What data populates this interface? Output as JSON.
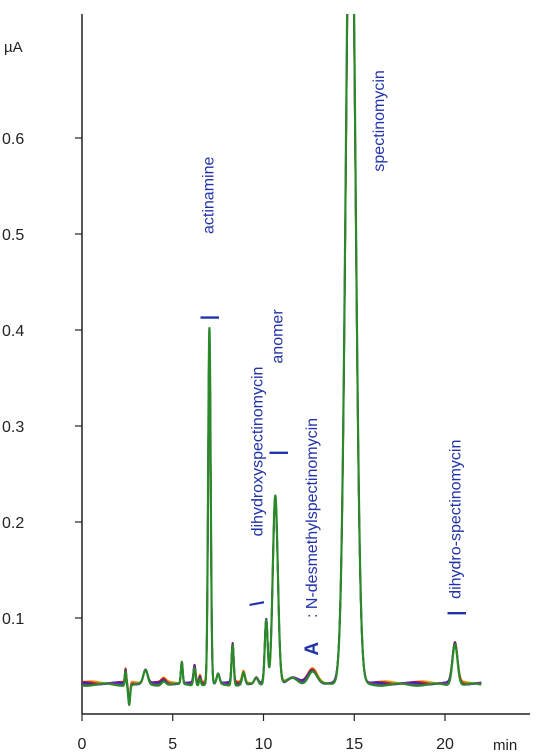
{
  "chart_data": {
    "type": "line",
    "title": "",
    "xlabel": "",
    "ylabel": "",
    "x_unit": "min",
    "y_unit": "µA",
    "xlim": [
      0,
      25
    ],
    "ylim": [
      -0.01,
      0.72
    ],
    "x_ticks": [
      {
        "value": 0,
        "label": "0"
      },
      {
        "value": 5,
        "label": "5"
      },
      {
        "value": 10,
        "label": "10"
      },
      {
        "value": 15,
        "label": "15"
      },
      {
        "value": 20,
        "label": "20"
      }
    ],
    "y_ticks": [
      {
        "value": 0.1,
        "label": "0.1"
      },
      {
        "value": 0.2,
        "label": "0.2"
      },
      {
        "value": 0.3,
        "label": "0.3"
      },
      {
        "value": 0.4,
        "label": "0.4"
      },
      {
        "value": 0.5,
        "label": "0.5"
      },
      {
        "value": 0.6,
        "label": "0.6"
      }
    ],
    "grid": false,
    "legend": "none",
    "series_colors": [
      "#e8a020",
      "#cc2222",
      "#2a2ab0",
      "#8822aa",
      "#2a8a2a"
    ],
    "baseline": 0.033,
    "trace_end": 22,
    "peaks": [
      {
        "t": 2.4,
        "h": 0.014,
        "w": 0.04
      },
      {
        "t": 2.6,
        "h": -0.02,
        "w": 0.05
      },
      {
        "t": 3.5,
        "h": 0.014,
        "w": 0.12
      },
      {
        "t": 4.5,
        "h": 0.004,
        "w": 0.12
      },
      {
        "t": 5.5,
        "h": 0.022,
        "w": 0.05
      },
      {
        "t": 6.2,
        "h": 0.018,
        "w": 0.06
      },
      {
        "t": 6.5,
        "h": 0.007,
        "w": 0.05
      },
      {
        "t": 7.02,
        "h": 0.362,
        "w": 0.07
      },
      {
        "t": 7.5,
        "h": 0.01,
        "w": 0.08
      },
      {
        "t": 8.3,
        "h": 0.041,
        "w": 0.06
      },
      {
        "t": 8.9,
        "h": 0.012,
        "w": 0.08
      },
      {
        "t": 9.6,
        "h": 0.006,
        "w": 0.1
      },
      {
        "t": 10.15,
        "h": 0.066,
        "w": 0.08
      },
      {
        "t": 10.65,
        "h": 0.193,
        "w": 0.14
      },
      {
        "t": 11.6,
        "h": 0.006,
        "w": 0.3
      },
      {
        "t": 12.7,
        "h": 0.014,
        "w": 0.25
      },
      {
        "t": 14.8,
        "h": 0.9,
        "w": 0.26
      },
      {
        "t": 20.55,
        "h": 0.042,
        "w": 0.14
      }
    ],
    "annotations": [
      {
        "text": "actinamine",
        "t": 7.0,
        "y": 0.5,
        "marker": "|",
        "marker_y": 0.413
      },
      {
        "text": "dihydroxyspectinomycin",
        "t": 9.7,
        "y": 0.185,
        "marker": "\\",
        "marker_y": 0.115
      },
      {
        "text": "anomer",
        "t": 10.8,
        "y": 0.365,
        "marker": "|",
        "marker_y": 0.272
      },
      {
        "text": ": N-desmethylspectinomycin",
        "t": 12.7,
        "y": 0.1,
        "marker": "A",
        "marker_y": 0.068
      },
      {
        "text": "spectinomycin",
        "t": 16.4,
        "y": 0.565,
        "marker": "",
        "marker_y": 0
      },
      {
        "text": "dihydro-spectinomycin",
        "t": 20.6,
        "y": 0.12,
        "marker": "|",
        "marker_y": 0.105
      }
    ]
  }
}
